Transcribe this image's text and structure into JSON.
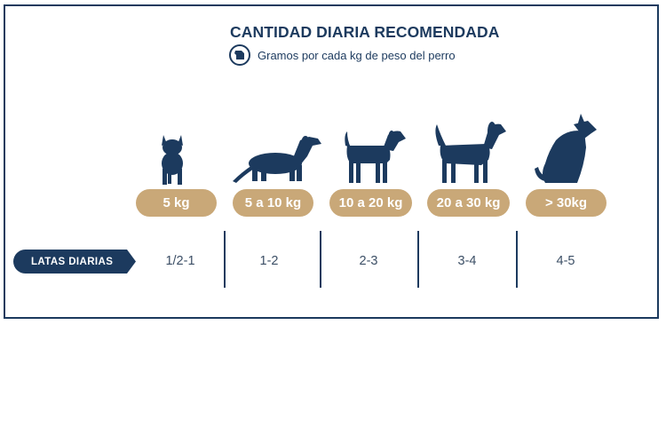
{
  "title": "CANTIDAD DIARIA RECOMENDADA",
  "subtitle": "Gramos por cada kg de peso del perro",
  "icon": "weight-icon",
  "row_label": "LATAS DIARIAS",
  "colors": {
    "navy": "#1c3a5e",
    "gold": "#c9a878"
  },
  "columns": [
    {
      "weight": "5 kg",
      "cans": "1/2-1",
      "dog": "french-bulldog-icon"
    },
    {
      "weight": "5 a 10 kg",
      "cans": "1-2",
      "dog": "dachshund-icon"
    },
    {
      "weight": "10 a 20 kg",
      "cans": "2-3",
      "dog": "beagle-icon"
    },
    {
      "weight": "20 a 30 kg",
      "cans": "3-4",
      "dog": "setter-icon"
    },
    {
      "weight": "> 30kg",
      "cans": "4-5",
      "dog": "sitting-dog-icon"
    }
  ]
}
